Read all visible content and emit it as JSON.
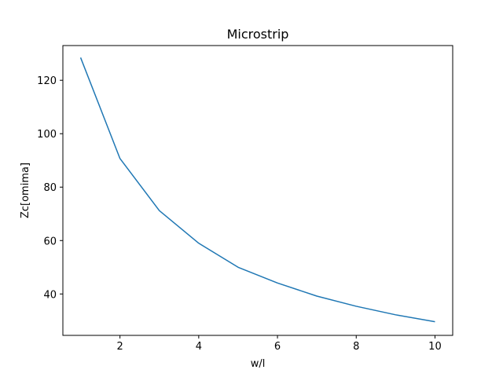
{
  "chart_data": {
    "type": "line",
    "title": "Microstrip",
    "xlabel": "w/l",
    "ylabel": "Zc[omima]",
    "xlim": [
      0.55,
      10.45
    ],
    "ylim": [
      24.5,
      133.0
    ],
    "xticks": [
      2,
      4,
      6,
      8,
      10
    ],
    "yticks": [
      40,
      60,
      80,
      100,
      120
    ],
    "grid": false,
    "series": [
      {
        "color": "#1f77b4",
        "x": [
          1,
          2,
          3,
          4,
          5,
          6,
          7,
          8,
          9,
          10
        ],
        "y": [
          128.5,
          90.7,
          71.2,
          59.0,
          50.0,
          44.1,
          39.2,
          35.4,
          32.2,
          29.6
        ]
      }
    ]
  }
}
